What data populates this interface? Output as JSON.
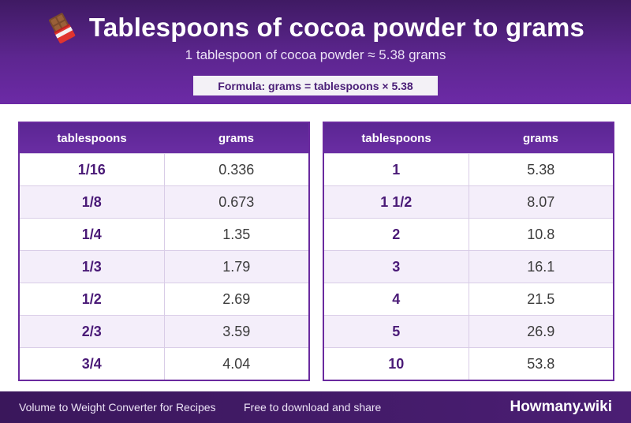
{
  "header": {
    "title": "Tablespoons of cocoa powder to grams",
    "icon": "chocolate-bar-icon",
    "subtitle": "1 tablespoon of cocoa powder ≈ 5.38 grams",
    "formula": "Formula: grams = tablespoons × 5.38"
  },
  "colors": {
    "header_dark": "#3f1a63",
    "header_light": "#6c2aa6",
    "accent": "#6a2a9f",
    "row_alt": "#f4eefa",
    "footer": "#3a175b"
  },
  "tables": [
    {
      "headers": [
        "tablespoons",
        "grams"
      ],
      "rows": [
        [
          "1/16",
          "0.336"
        ],
        [
          "1/8",
          "0.673"
        ],
        [
          "1/4",
          "1.35"
        ],
        [
          "1/3",
          "1.79"
        ],
        [
          "1/2",
          "2.69"
        ],
        [
          "2/3",
          "3.59"
        ],
        [
          "3/4",
          "4.04"
        ]
      ]
    },
    {
      "headers": [
        "tablespoons",
        "grams"
      ],
      "rows": [
        [
          "1",
          "5.38"
        ],
        [
          "1 1/2",
          "8.07"
        ],
        [
          "2",
          "10.8"
        ],
        [
          "3",
          "16.1"
        ],
        [
          "4",
          "21.5"
        ],
        [
          "5",
          "26.9"
        ],
        [
          "10",
          "53.8"
        ]
      ]
    }
  ],
  "footer": {
    "left": "Volume to Weight Converter for Recipes",
    "middle": "Free to download and share",
    "brand": "Howmany.wiki"
  }
}
